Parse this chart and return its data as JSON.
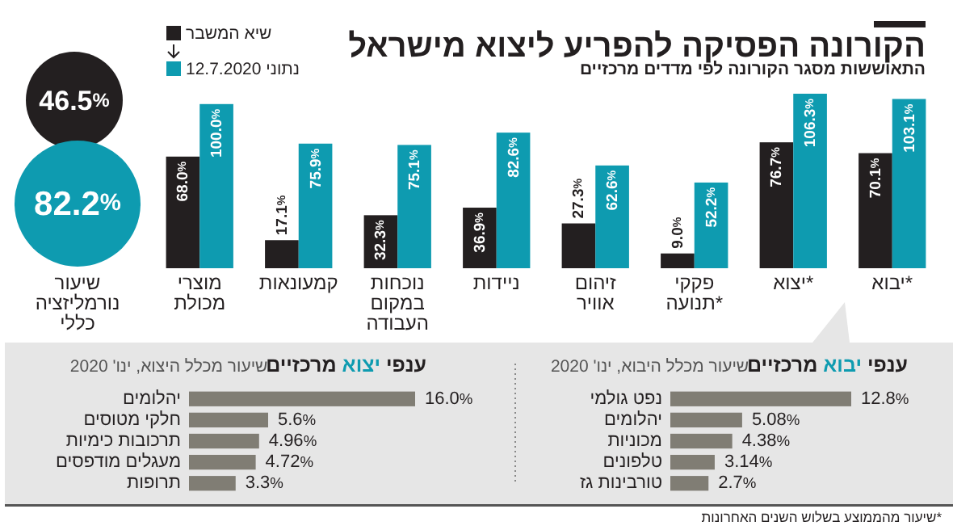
{
  "chart_data": [
    {
      "type": "bar",
      "title": "הקורונה הפסיקה להפריע ליצוא מישראל",
      "subtitle": "התאוששות מסגר הקורונה לפי מדדים מרכזיים",
      "categories": [
        "מוצרי מכולת",
        "קמעונאות",
        "נוכחות במקום העבודה",
        "ניידות",
        "זיהום אוויר",
        "פקקי תנועה*",
        "יצוא*",
        "יבוא*"
      ],
      "series": [
        {
          "name": "שיא המשבר",
          "color": "#231f20",
          "values": [
            68.0,
            17.1,
            32.3,
            36.9,
            27.3,
            9.0,
            76.7,
            70.1
          ],
          "value_labels": [
            "68.0%",
            "17.1%",
            "32.3%",
            "36.9%",
            "27.3%",
            "9.0%",
            "76.7%",
            "70.1%"
          ]
        },
        {
          "name": "נתוני 12.7.2020",
          "color": "#0e9bb0",
          "values": [
            100.0,
            75.9,
            75.1,
            82.6,
            62.6,
            52.2,
            106.3,
            103.1
          ],
          "value_labels": [
            "100.0%",
            "75.9%",
            "75.1%",
            "82.6%",
            "62.6%",
            "52.2%",
            "106.3%",
            "103.1%"
          ]
        }
      ],
      "tick_labels": "x",
      "legend": "top left",
      "annotations": [
        "שיעור מהממוצע בשלוש השנים האחרונות*"
      ]
    },
    {
      "type": "other",
      "xlabel": "שיעור נורמליזציה כללי",
      "categories": [
        null,
        null
      ],
      "values": [
        46.5,
        82.2
      ],
      "value_labels": [
        "46.5%",
        "82.2%"
      ],
      "colors": [
        "#231f20",
        "#0e9bb0"
      ]
    },
    {
      "type": "bar",
      "orientation": "horizontal",
      "title": "ענפי יבוא מרכזיים",
      "subtitle": "שיעור מכלל היבוא, ינו' 2020",
      "categories": [
        "נפט גולמי",
        "יהלומים",
        "מכוניות",
        "טלפונים",
        "טורבינות גז"
      ],
      "values": [
        12.8,
        5.08,
        4.38,
        3.14,
        2.7
      ],
      "value_labels": [
        "12.8%",
        "5.08%",
        "4.38%",
        "3.14%",
        "2.7%"
      ],
      "color": "#807d74",
      "tick_labels": "y"
    },
    {
      "type": "bar",
      "orientation": "horizontal",
      "title": "ענפי יצוא מרכזיים",
      "subtitle": "שיעור מכלל היצוא, ינו' 2020",
      "categories": [
        "יהלומים",
        "חלקי מטוסים",
        "תרכובות כימיות",
        "מעגלים מודפסים",
        "תרופות"
      ],
      "values": [
        16.0,
        5.6,
        4.96,
        4.72,
        3.3
      ],
      "value_labels": [
        "16.0%",
        "5.6%",
        "4.96%",
        "4.72%",
        "3.3%"
      ],
      "color": "#807d74",
      "tick_labels": "y"
    }
  ]
}
